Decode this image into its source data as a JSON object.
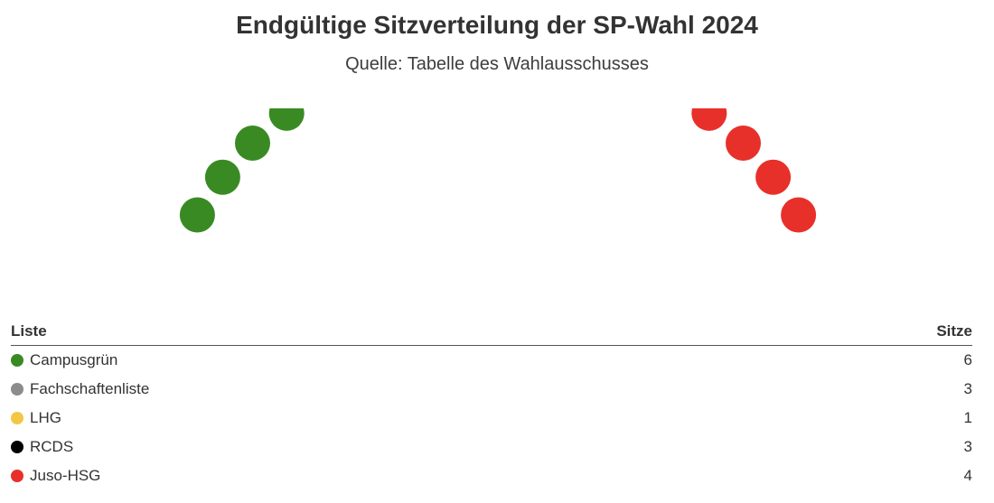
{
  "chart_data": {
    "type": "parliament",
    "title": "Endgültige Sitzverteilung der SP-Wahl 2024",
    "subtitle": "Quelle: Tabelle des Wahlausschusses",
    "series": [
      {
        "name": "Campusgrün",
        "value": 6,
        "color": "#3a8a24"
      },
      {
        "name": "Fachschaftenliste",
        "value": 3,
        "color": "#8c8c8c"
      },
      {
        "name": "LHG",
        "value": 1,
        "color": "#f2c744"
      },
      {
        "name": "RCDS",
        "value": 3,
        "color": "#000000"
      },
      {
        "name": "Juso-HSG",
        "value": 4,
        "color": "#e8302a"
      }
    ]
  },
  "table": {
    "header_list": "Liste",
    "header_seats": "Sitze"
  }
}
